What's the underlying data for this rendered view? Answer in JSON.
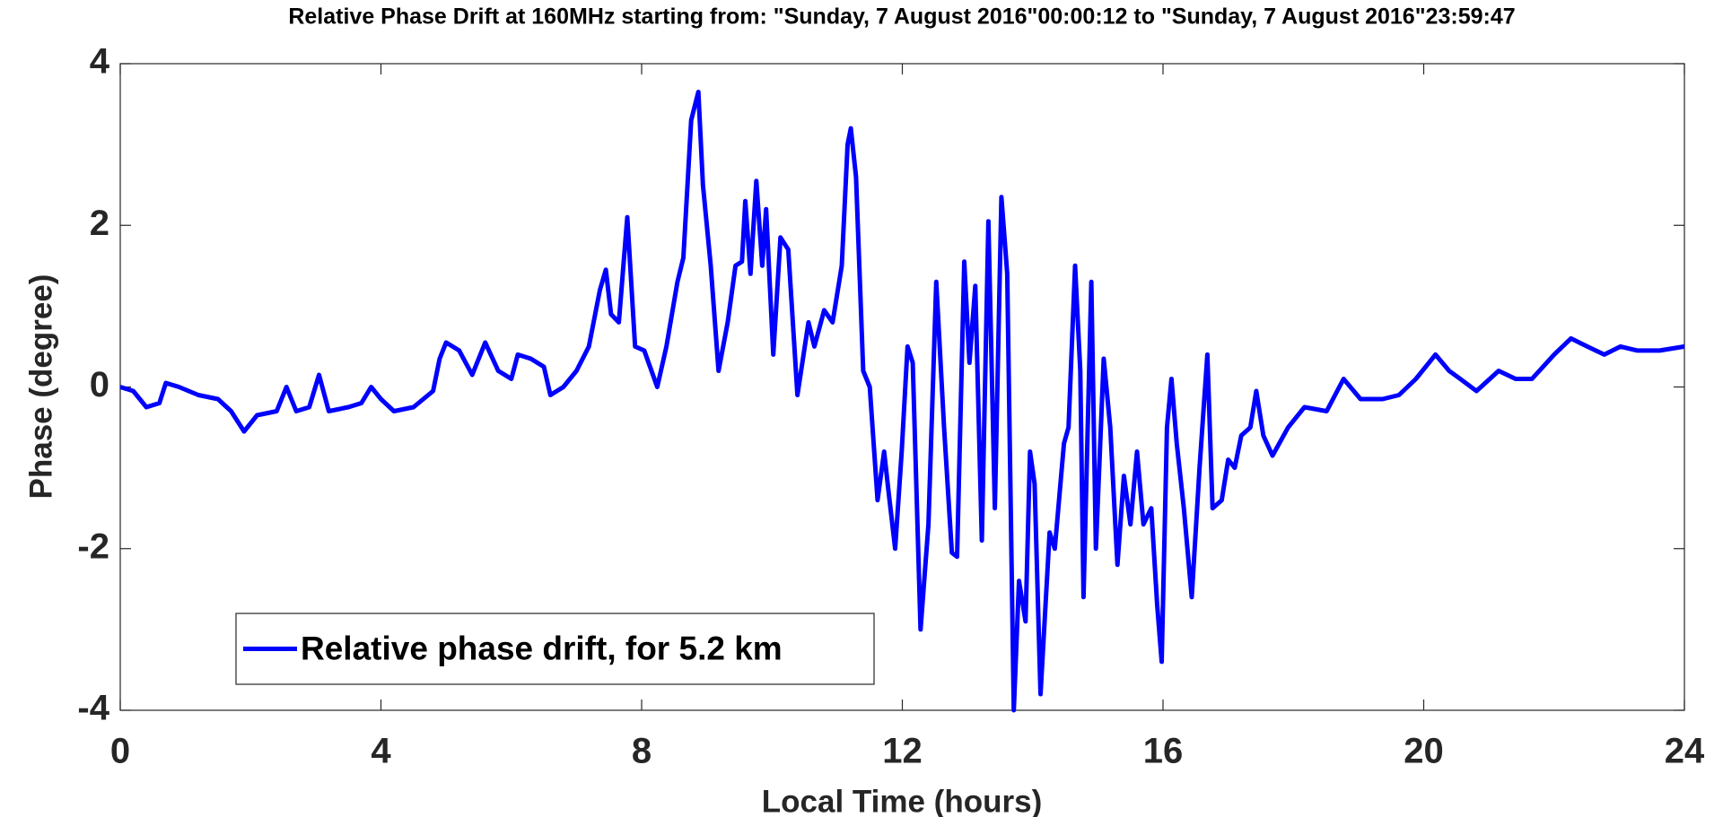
{
  "chart_data": {
    "type": "line",
    "title": "Relative Phase Drift at 160MHz starting from: \"Sunday, 7 August 2016\"00:00:12 to \"Sunday, 7 August 2016\"23:59:47",
    "xlabel": "Local Time (hours)",
    "ylabel": "Phase (degree)",
    "x": [
      0,
      0.2,
      0.4,
      0.6,
      0.7,
      0.9,
      1.2,
      1.5,
      1.7,
      1.9,
      2.1,
      2.4,
      2.55,
      2.7,
      2.9,
      3.05,
      3.2,
      3.5,
      3.7,
      3.85,
      4.0,
      4.2,
      4.5,
      4.8,
      4.9,
      5.0,
      5.2,
      5.4,
      5.6,
      5.8,
      6.0,
      6.1,
      6.3,
      6.5,
      6.6,
      6.8,
      7.0,
      7.19,
      7.36,
      7.45,
      7.53,
      7.65,
      7.78,
      7.9,
      8.04,
      8.24,
      8.38,
      8.55,
      8.64,
      8.76,
      8.87,
      8.94,
      9.06,
      9.18,
      9.32,
      9.44,
      9.54,
      9.59,
      9.67,
      9.76,
      9.85,
      9.91,
      10.02,
      10.13,
      10.25,
      10.39,
      10.56,
      10.65,
      10.8,
      10.93,
      11.07,
      11.16,
      11.21,
      11.29,
      11.4,
      11.5,
      11.62,
      11.72,
      11.79,
      11.89,
      11.99,
      12.08,
      12.16,
      12.28,
      12.4,
      12.52,
      12.64,
      12.76,
      12.84,
      12.95,
      13.03,
      13.12,
      13.22,
      13.32,
      13.42,
      13.52,
      13.61,
      13.71,
      13.79,
      13.89,
      13.96,
      14.03,
      14.12,
      14.26,
      14.34,
      14.48,
      14.55,
      14.65,
      14.73,
      14.78,
      14.9,
      14.97,
      15.09,
      15.19,
      15.3,
      15.4,
      15.5,
      15.6,
      15.7,
      15.82,
      15.91,
      15.98,
      16.06,
      16.13,
      16.21,
      16.32,
      16.44,
      16.56,
      16.68,
      16.76,
      16.9,
      17.0,
      17.1,
      17.2,
      17.34,
      17.43,
      17.54,
      17.68,
      17.92,
      18.17,
      18.51,
      18.77,
      19.03,
      19.37,
      19.62,
      19.88,
      20.18,
      20.39,
      20.56,
      20.81,
      21.15,
      21.41,
      21.66,
      22.0,
      22.26,
      22.51,
      22.77,
      23.02,
      23.28,
      23.62,
      24.0
    ],
    "series": [
      {
        "name": "Relative phase drift, for 5.2 km",
        "color": "#0000ff",
        "values": [
          0,
          -0.05,
          -0.25,
          -0.2,
          0.05,
          0.0,
          -0.1,
          -0.15,
          -0.3,
          -0.55,
          -0.35,
          -0.3,
          0.0,
          -0.3,
          -0.25,
          0.15,
          -0.3,
          -0.25,
          -0.2,
          0.0,
          -0.15,
          -0.3,
          -0.25,
          -0.05,
          0.35,
          0.55,
          0.45,
          0.15,
          0.55,
          0.2,
          0.1,
          0.4,
          0.35,
          0.25,
          -0.1,
          0.0,
          0.2,
          0.5,
          1.2,
          1.45,
          0.9,
          0.8,
          2.1,
          0.5,
          0.45,
          0.0,
          0.5,
          1.3,
          1.6,
          3.3,
          3.65,
          2.5,
          1.5,
          0.2,
          0.8,
          1.5,
          1.55,
          2.3,
          1.4,
          2.55,
          1.5,
          2.2,
          0.4,
          1.85,
          1.7,
          -0.1,
          0.8,
          0.5,
          0.95,
          0.8,
          1.5,
          3.0,
          3.2,
          2.6,
          0.2,
          0.0,
          -1.4,
          -0.8,
          -1.3,
          -2.0,
          -0.8,
          0.5,
          0.3,
          -3.0,
          -1.7,
          1.3,
          -0.5,
          -2.05,
          -2.1,
          1.55,
          0.3,
          1.25,
          -1.9,
          2.05,
          -1.5,
          2.35,
          1.4,
          -4.0,
          -2.4,
          -2.9,
          -0.8,
          -1.2,
          -3.8,
          -1.8,
          -2.0,
          -0.7,
          -0.5,
          1.5,
          0.2,
          -2.6,
          1.3,
          -2.0,
          0.35,
          -0.5,
          -2.2,
          -1.1,
          -1.7,
          -0.8,
          -1.7,
          -1.5,
          -2.7,
          -3.4,
          -0.5,
          0.1,
          -0.7,
          -1.5,
          -2.6,
          -1.0,
          0.4,
          -1.5,
          -1.4,
          -0.9,
          -1.0,
          -0.6,
          -0.5,
          -0.05,
          -0.6,
          -0.85,
          -0.5,
          -0.25,
          -0.3,
          0.1,
          -0.15,
          -0.15,
          -0.1,
          0.1,
          0.4,
          0.2,
          0.1,
          -0.05,
          0.2,
          0.1,
          0.1,
          0.4,
          0.6,
          0.5,
          0.4,
          0.5,
          0.45,
          0.45,
          0.5
        ]
      }
    ],
    "xlim": [
      0,
      24
    ],
    "xticks": [
      0,
      4,
      8,
      12,
      16,
      20,
      24
    ],
    "ylim": [
      -4,
      4
    ],
    "yticks": [
      -4,
      -2,
      0,
      2,
      4
    ],
    "grid": false,
    "legend": "lower left"
  }
}
